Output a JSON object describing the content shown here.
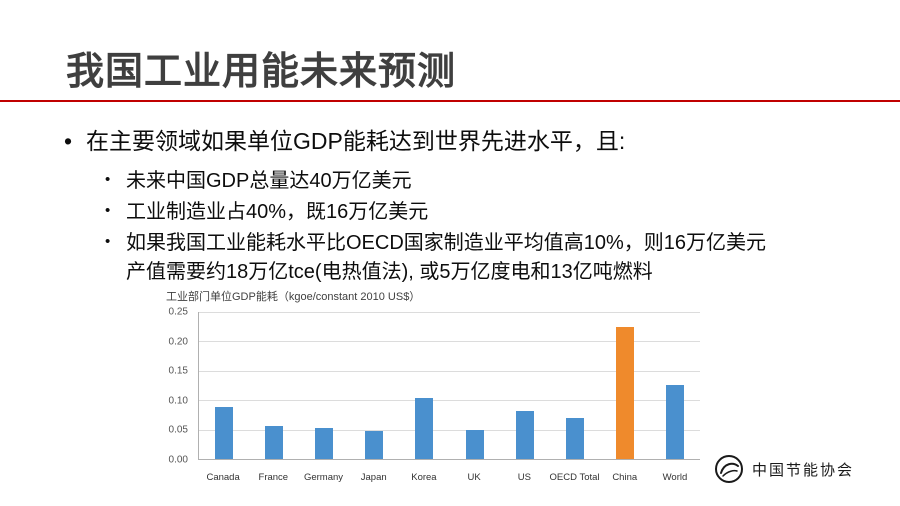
{
  "slide": {
    "title": "我国工业用能未来预测"
  },
  "bullets": {
    "main": "在主要领域如果单位GDP能耗达到世界先进水平，且:",
    "sub": [
      "未来中国GDP总量达40万亿美元",
      "工业制造业占40%，既16万亿美元",
      "如果我国工业能耗水平比OECD国家制造业平均值高10%，则16万亿美元\n产值需要约18万亿tce(电热值法), 或5万亿度电和13亿吨燃料"
    ]
  },
  "chart_data": {
    "type": "bar",
    "title": "工业部门单位GDP能耗（kgoe/constant 2010 US$）",
    "categories": [
      "Canada",
      "France",
      "Germany",
      "Japan",
      "Korea",
      "UK",
      "US",
      "OECD Total",
      "China",
      "World"
    ],
    "values": [
      0.088,
      0.056,
      0.053,
      0.047,
      0.103,
      0.05,
      0.081,
      0.07,
      0.225,
      0.126
    ],
    "ylim": [
      0,
      0.25
    ],
    "yticks": [
      0,
      0.05,
      0.1,
      0.15,
      0.2,
      0.25
    ],
    "grid": true,
    "legend": "none",
    "bar_color": "#4A90CE",
    "highlight": {
      "category": "China",
      "color": "#EF8A2C"
    }
  },
  "footer": {
    "org_name": "中国节能协会"
  },
  "colors": {
    "accent_red": "#C00000",
    "title_gray": "#3F3F3F"
  }
}
